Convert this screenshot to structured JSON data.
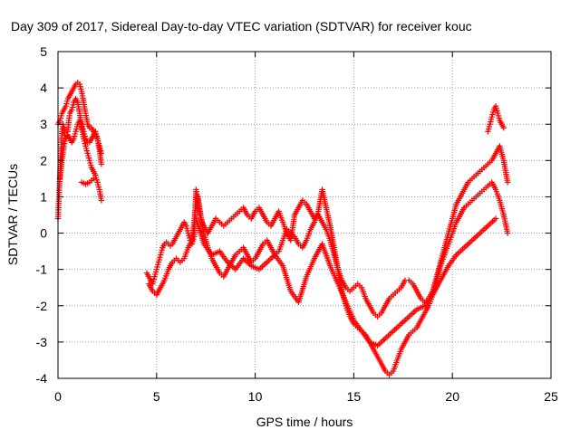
{
  "chart_data": {
    "type": "scatter",
    "title": "Day 309 of 2017, Sidereal Day-to-day VTEC variation (SDTVAR) for receiver kouc",
    "xlabel": "GPS time / hours",
    "ylabel": "SDTVAR / TECUs",
    "xlim": [
      0,
      25
    ],
    "ylim": [
      -4,
      5
    ],
    "x_ticks": [
      0,
      5,
      10,
      15,
      20,
      25
    ],
    "x_tick_labels": [
      "0",
      "5",
      "10",
      "15",
      "20",
      "25"
    ],
    "y_ticks": [
      -4,
      -3,
      -2,
      -1,
      0,
      1,
      2,
      3,
      4,
      5
    ],
    "y_tick_labels": [
      "-4",
      "-3",
      "-2",
      "-1",
      "0",
      "1",
      "2",
      "3",
      "4",
      "5"
    ],
    "grid": true,
    "marker": "+",
    "color": "#ff0000",
    "series": [
      {
        "x": [
          0.0,
          0.05,
          0.1,
          0.15,
          0.2,
          0.25,
          0.3,
          0.35,
          0.4,
          0.45,
          0.5,
          0.55,
          0.6,
          0.7,
          0.8,
          0.9,
          1.0,
          1.1,
          1.2,
          1.3,
          1.4,
          1.5,
          1.6,
          1.7,
          1.8,
          1.9,
          2.0,
          2.1,
          2.2
        ],
        "y": [
          0.4,
          1.0,
          1.6,
          2.2,
          2.8,
          3.0,
          2.9,
          2.7,
          2.6,
          2.7,
          2.8,
          3.1,
          3.3,
          3.4,
          3.6,
          3.7,
          3.6,
          3.3,
          2.9,
          2.6,
          2.4,
          2.2,
          2.0,
          1.8,
          1.7,
          1.6,
          1.4,
          1.2,
          0.9
        ]
      },
      {
        "x": [
          0.0,
          0.1,
          0.2,
          0.3,
          0.4,
          0.5,
          0.6,
          0.7,
          0.8,
          0.9,
          1.0,
          1.1,
          1.2,
          1.3,
          1.4,
          1.5,
          1.6,
          1.7,
          1.8,
          1.9,
          2.0,
          2.1,
          2.2
        ],
        "y": [
          3.0,
          3.1,
          3.3,
          3.4,
          3.5,
          3.7,
          3.8,
          3.9,
          4.0,
          4.1,
          4.15,
          4.1,
          3.9,
          3.6,
          3.3,
          3.0,
          2.9,
          2.9,
          2.8,
          2.7,
          2.6,
          2.4,
          2.2
        ]
      },
      {
        "x": [
          0.1,
          0.2,
          0.3,
          0.4,
          0.5,
          0.6,
          0.7,
          0.8,
          0.9,
          1.0,
          1.1,
          1.2,
          1.3,
          1.4,
          1.5,
          1.6,
          1.7,
          1.8,
          1.9,
          2.0,
          2.1,
          2.2
        ],
        "y": [
          1.5,
          2.0,
          2.4,
          2.6,
          2.7,
          2.6,
          2.5,
          2.6,
          2.8,
          3.0,
          3.1,
          3.0,
          2.8,
          2.6,
          2.5,
          2.5,
          2.6,
          2.7,
          2.8,
          2.6,
          2.3,
          1.9
        ]
      },
      {
        "x": [
          1.2,
          1.4,
          1.6,
          1.8
        ],
        "y": [
          1.4,
          1.35,
          1.4,
          1.5
        ]
      },
      {
        "x": [
          4.5,
          4.6,
          4.7,
          4.8,
          4.9,
          5.0,
          5.1,
          5.2,
          5.3,
          5.4,
          5.5,
          5.6,
          5.7,
          5.8,
          5.9,
          6.0,
          6.1,
          6.2,
          6.3,
          6.4,
          6.5,
          6.6,
          6.7,
          6.8,
          6.9,
          7.0,
          7.1,
          7.2,
          7.3,
          7.4,
          7.5,
          7.6,
          7.7,
          7.8,
          7.9,
          8.0,
          8.2,
          8.4,
          8.6,
          8.8,
          9.0,
          9.2,
          9.4,
          9.6,
          9.8,
          10.0,
          10.2,
          10.4,
          10.6,
          10.8,
          11.0,
          11.2,
          11.4,
          11.6,
          11.8,
          12.0,
          12.2,
          12.4,
          12.6,
          12.8,
          13.0,
          13.2,
          13.4,
          13.6,
          13.8,
          14.0,
          14.2,
          14.4,
          14.6,
          14.8,
          15.0,
          15.2,
          15.4,
          15.6,
          15.8,
          16.0,
          16.2,
          16.4,
          16.6,
          16.8,
          17.0,
          17.2,
          17.4,
          17.6,
          17.8,
          18.0,
          18.2,
          18.4,
          18.6,
          18.8,
          19.0,
          19.2,
          19.4,
          19.6,
          19.8,
          20.0,
          20.2,
          20.4,
          20.6,
          20.8,
          21.0,
          21.2,
          21.4,
          21.6,
          21.8,
          22.0,
          22.2,
          22.4,
          22.6,
          22.8
        ],
        "y": [
          -1.1,
          -1.2,
          -1.3,
          -1.4,
          -1.2,
          -1.0,
          -0.8,
          -0.6,
          -0.4,
          -0.3,
          -0.25,
          -0.3,
          -0.35,
          -0.3,
          -0.2,
          -0.1,
          0.0,
          0.1,
          0.2,
          0.3,
          0.2,
          0.0,
          -0.2,
          -0.3,
          -0.1,
          1.2,
          0.9,
          0.5,
          0.3,
          0.2,
          0.1,
          0.0,
          0.1,
          0.2,
          0.3,
          0.4,
          0.3,
          0.2,
          0.3,
          0.4,
          0.5,
          0.6,
          0.7,
          0.5,
          0.4,
          0.6,
          0.7,
          0.5,
          0.3,
          0.2,
          0.4,
          0.6,
          0.3,
          0.0,
          -0.2,
          0.5,
          0.7,
          0.9,
          0.8,
          0.6,
          0.4,
          0.5,
          0.3,
          0.1,
          -0.2,
          -0.6,
          -1.0,
          -1.3,
          -1.5,
          -1.6,
          -1.5,
          -1.4,
          -1.5,
          -1.8,
          -2.0,
          -2.2,
          -2.3,
          -2.2,
          -2.0,
          -1.8,
          -1.7,
          -1.6,
          -1.5,
          -1.3,
          -1.3,
          -1.4,
          -1.6,
          -1.8,
          -1.9,
          -1.8,
          -1.6,
          -1.2,
          -0.8,
          -0.4,
          0.0,
          0.4,
          0.8,
          1.0,
          1.2,
          1.4,
          1.5,
          1.6,
          1.7,
          1.8,
          1.9,
          2.0,
          2.2,
          2.4,
          2.0,
          1.4
        ]
      },
      {
        "x": [
          4.6,
          4.8,
          5.0,
          5.2,
          5.4,
          5.6,
          5.8,
          6.0,
          6.2,
          6.4,
          6.6,
          6.8,
          7.0,
          7.1,
          7.2,
          7.4,
          7.6,
          7.8,
          8.0,
          8.2,
          8.4,
          8.6,
          8.8,
          9.0,
          9.2,
          9.4,
          9.6,
          9.8,
          10.0,
          10.2,
          10.4,
          10.6,
          10.8,
          11.0,
          11.2,
          11.4,
          11.6,
          11.8,
          12.0,
          12.2,
          12.4,
          12.6,
          12.8,
          13.0,
          13.2,
          13.4,
          13.6,
          13.8,
          14.0,
          14.2,
          14.4,
          14.6,
          14.8,
          15.0,
          15.2,
          15.4,
          15.6,
          15.8,
          16.0,
          16.2,
          16.4,
          16.6,
          16.8,
          17.0,
          17.2,
          17.4,
          17.6,
          17.8,
          18.0,
          18.2,
          18.4,
          18.6,
          18.8,
          19.0,
          19.2,
          19.4,
          19.6,
          19.8,
          20.0,
          20.2,
          20.4,
          20.6,
          20.8,
          21.0,
          21.2,
          21.4,
          21.6,
          21.8,
          22.0,
          22.2,
          22.4,
          22.6,
          22.8
        ],
        "y": [
          -1.4,
          -1.6,
          -1.7,
          -1.5,
          -1.3,
          -1.0,
          -0.8,
          -0.7,
          -0.8,
          -0.7,
          -0.4,
          -0.2,
          0.8,
          1.0,
          0.6,
          0.0,
          -0.4,
          -0.7,
          -0.9,
          -1.1,
          -1.2,
          -1.0,
          -0.8,
          -0.6,
          -0.5,
          -0.4,
          -0.6,
          -0.8,
          -0.7,
          -0.5,
          -0.3,
          -0.2,
          -0.4,
          -0.6,
          -0.5,
          -0.2,
          0.1,
          0.0,
          -0.1,
          -0.3,
          -0.4,
          -0.2,
          0.1,
          0.3,
          0.6,
          1.2,
          0.7,
          0.2,
          -0.4,
          -1.0,
          -1.6,
          -2.0,
          -2.3,
          -2.5,
          -2.6,
          -2.7,
          -2.8,
          -3.0,
          -3.2,
          -3.4,
          -3.6,
          -3.8,
          -3.9,
          -3.8,
          -3.5,
          -3.2,
          -3.0,
          -2.8,
          -2.7,
          -2.6,
          -2.4,
          -2.2,
          -2.0,
          -1.7,
          -1.3,
          -0.9,
          -0.6,
          -0.3,
          0.0,
          0.3,
          0.5,
          0.7,
          0.8,
          0.9,
          1.0,
          1.1,
          1.2,
          1.3,
          1.4,
          1.2,
          0.9,
          0.5,
          0.0
        ]
      },
      {
        "x": [
          7.0,
          7.4,
          7.8,
          8.2,
          8.6,
          9.0,
          9.4,
          9.8,
          10.2,
          10.6,
          11.0,
          11.4,
          11.8,
          12.2,
          12.6,
          13.0,
          13.4,
          13.8,
          14.2,
          14.6,
          15.0,
          15.4,
          15.8,
          16.2,
          16.6,
          17.0,
          17.4,
          17.8,
          18.2,
          18.6,
          19.0,
          19.4,
          19.8,
          20.2,
          20.6,
          21.0,
          21.4,
          21.8,
          22.2
        ],
        "y": [
          0.4,
          -0.3,
          -0.6,
          -0.5,
          -0.8,
          -1.0,
          -0.7,
          -0.9,
          -1.0,
          -0.8,
          -0.6,
          -0.9,
          -1.6,
          -1.9,
          -1.2,
          -0.7,
          -0.3,
          -0.9,
          -1.4,
          -1.9,
          -2.4,
          -2.7,
          -3.0,
          -3.1,
          -2.9,
          -2.7,
          -2.5,
          -2.3,
          -2.1,
          -2.0,
          -1.7,
          -1.3,
          -0.9,
          -0.6,
          -0.4,
          -0.2,
          0.0,
          0.2,
          0.4
        ]
      },
      {
        "x": [
          21.8,
          21.9,
          22.0,
          22.1,
          22.2,
          22.3,
          22.4,
          22.5,
          22.6
        ],
        "y": [
          2.8,
          3.0,
          3.2,
          3.4,
          3.5,
          3.3,
          3.1,
          3.0,
          2.9
        ]
      }
    ]
  }
}
